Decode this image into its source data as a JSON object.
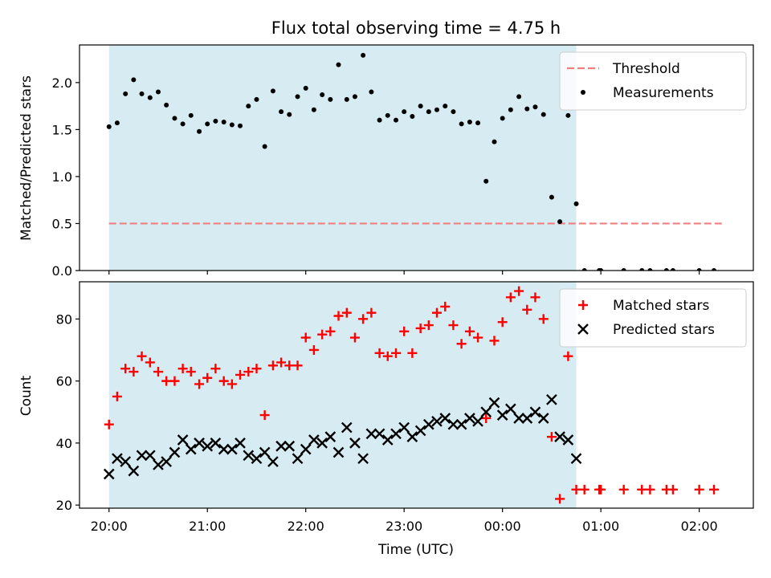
{
  "chart_data": [
    {
      "type": "scatter",
      "title": "Flux total observing time = 4.75 h",
      "xlabel": "",
      "ylabel": "Matched/Predicted stars",
      "ylim": [
        0,
        2.4
      ],
      "yticks": [
        "0.0",
        "0.5",
        "1.0",
        "1.5",
        "2.0"
      ],
      "xlim_hours": [
        -0.3,
        6.55
      ],
      "shaded_span_hours": [
        0,
        4.75
      ],
      "shade_color": "#add8e6",
      "threshold": {
        "name": "Threshold",
        "value": 0.5,
        "x_hours": [
          0,
          6.25
        ],
        "color": "#f08080",
        "style": "dashed"
      },
      "legend": {
        "position": "upper-right"
      },
      "series": [
        {
          "name": "Measurements",
          "marker": "dot",
          "color": "#000000",
          "x_hours": [
            0.0,
            0.083,
            0.167,
            0.25,
            0.333,
            0.417,
            0.5,
            0.583,
            0.667,
            0.75,
            0.833,
            0.917,
            1.0,
            1.083,
            1.167,
            1.25,
            1.333,
            1.417,
            1.5,
            1.583,
            1.667,
            1.75,
            1.833,
            1.917,
            2.0,
            2.083,
            2.167,
            2.25,
            2.333,
            2.417,
            2.5,
            2.583,
            2.667,
            2.75,
            2.833,
            2.917,
            3.0,
            3.083,
            3.167,
            3.25,
            3.333,
            3.417,
            3.5,
            3.583,
            3.667,
            3.75,
            3.833,
            3.917,
            4.0,
            4.083,
            4.167,
            4.25,
            4.333,
            4.417,
            4.5,
            4.583,
            4.667,
            4.75,
            4.833,
            4.983,
            5.0,
            5.233,
            5.417,
            5.5,
            5.667,
            5.733,
            6.0,
            6.15
          ],
          "y": [
            1.53,
            1.57,
            1.88,
            2.03,
            1.88,
            1.84,
            1.9,
            1.76,
            1.62,
            1.56,
            1.65,
            1.48,
            1.56,
            1.59,
            1.58,
            1.55,
            1.54,
            1.75,
            1.82,
            1.32,
            1.91,
            1.69,
            1.66,
            1.85,
            1.94,
            1.71,
            1.87,
            1.82,
            2.19,
            1.82,
            1.85,
            2.29,
            1.9,
            1.6,
            1.65,
            1.6,
            1.69,
            1.64,
            1.75,
            1.69,
            1.71,
            1.75,
            1.69,
            1.56,
            1.58,
            1.57,
            0.95,
            1.37,
            1.62,
            1.71,
            1.85,
            1.72,
            1.74,
            1.66,
            0.78,
            0.52,
            1.65,
            0.71,
            0.0,
            0.0,
            0.0,
            0.0,
            0.0,
            0.0,
            0.0,
            0.0,
            0.0,
            0.0
          ]
        }
      ]
    },
    {
      "type": "scatter",
      "title": "",
      "xlabel": "Time (UTC)",
      "ylabel": "Count",
      "ylim": [
        19,
        92
      ],
      "yticks": [
        "20",
        "40",
        "60",
        "80"
      ],
      "xlim_hours": [
        -0.3,
        6.55
      ],
      "xticks_hours": [
        0,
        1,
        2,
        3,
        4,
        5,
        6
      ],
      "xtick_labels": [
        "20:00",
        "21:00",
        "22:00",
        "23:00",
        "00:00",
        "01:00",
        "02:00"
      ],
      "shaded_span_hours": [
        0,
        4.75
      ],
      "shade_color": "#add8e6",
      "legend": {
        "position": "upper-right"
      },
      "series": [
        {
          "name": "Matched stars",
          "marker": "plus",
          "color": "#ff0000",
          "x_hours": [
            0.0,
            0.083,
            0.167,
            0.25,
            0.333,
            0.417,
            0.5,
            0.583,
            0.667,
            0.75,
            0.833,
            0.917,
            1.0,
            1.083,
            1.167,
            1.25,
            1.333,
            1.417,
            1.5,
            1.583,
            1.667,
            1.75,
            1.833,
            1.917,
            2.0,
            2.083,
            2.167,
            2.25,
            2.333,
            2.417,
            2.5,
            2.583,
            2.667,
            2.75,
            2.833,
            2.917,
            3.0,
            3.083,
            3.167,
            3.25,
            3.333,
            3.417,
            3.5,
            3.583,
            3.667,
            3.75,
            3.833,
            3.917,
            4.0,
            4.083,
            4.167,
            4.25,
            4.333,
            4.417,
            4.5,
            4.583,
            4.667,
            4.75,
            4.833,
            4.983,
            5.0,
            5.233,
            5.417,
            5.5,
            5.667,
            5.733,
            6.0,
            6.15
          ],
          "y": [
            46,
            55,
            64,
            63,
            68,
            66,
            63,
            60,
            60,
            64,
            63,
            59,
            61,
            64,
            60,
            59,
            62,
            63,
            64,
            49,
            65,
            66,
            65,
            65,
            74,
            70,
            75,
            76,
            81,
            82,
            74,
            80,
            82,
            69,
            68,
            69,
            76,
            69,
            77,
            78,
            82,
            84,
            78,
            72,
            76,
            74,
            48,
            73,
            79,
            87,
            89,
            83,
            87,
            80,
            42,
            22,
            68,
            25,
            25,
            25,
            25,
            25,
            25,
            25,
            25,
            25,
            25,
            25
          ]
        },
        {
          "name": "Predicted stars",
          "marker": "x",
          "color": "#000000",
          "x_hours": [
            0.0,
            0.083,
            0.167,
            0.25,
            0.333,
            0.417,
            0.5,
            0.583,
            0.667,
            0.75,
            0.833,
            0.917,
            1.0,
            1.083,
            1.167,
            1.25,
            1.333,
            1.417,
            1.5,
            1.583,
            1.667,
            1.75,
            1.833,
            1.917,
            2.0,
            2.083,
            2.167,
            2.25,
            2.333,
            2.417,
            2.5,
            2.583,
            2.667,
            2.75,
            2.833,
            2.917,
            3.0,
            3.083,
            3.167,
            3.25,
            3.333,
            3.417,
            3.5,
            3.583,
            3.667,
            3.75,
            3.833,
            3.917,
            4.0,
            4.083,
            4.167,
            4.25,
            4.333,
            4.417,
            4.5,
            4.583,
            4.667,
            4.75
          ],
          "y": [
            30,
            35,
            34,
            31,
            36,
            36,
            33,
            34,
            37,
            41,
            38,
            40,
            39,
            40,
            38,
            38,
            40,
            36,
            35,
            37,
            34,
            39,
            39,
            35,
            38,
            41,
            40,
            42,
            37,
            45,
            40,
            35,
            43,
            43,
            41,
            43,
            45,
            42,
            44,
            46,
            47,
            48,
            46,
            46,
            48,
            47,
            50,
            53,
            49,
            51,
            48,
            48,
            50,
            48,
            54,
            42,
            41,
            35
          ]
        }
      ]
    }
  ]
}
